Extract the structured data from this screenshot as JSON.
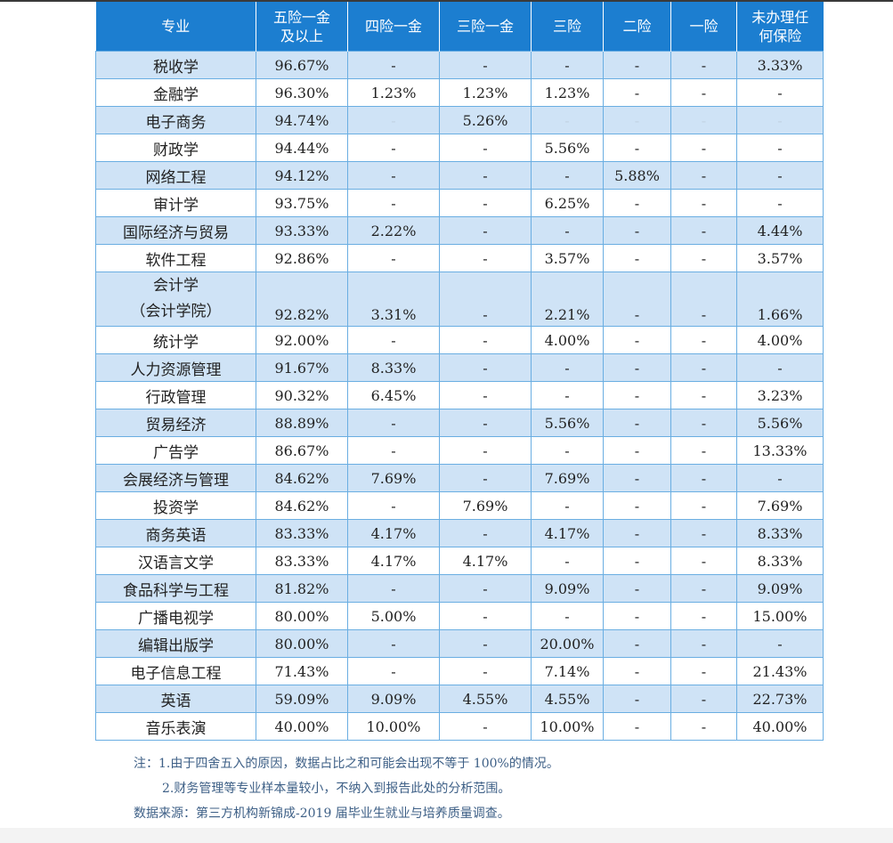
{
  "table": {
    "headers": [
      [
        "专业"
      ],
      [
        "五险一金",
        "及以上"
      ],
      [
        "四险一金"
      ],
      [
        "三险一金"
      ],
      [
        "三险"
      ],
      [
        "二险"
      ],
      [
        "一险"
      ],
      [
        "未办理任",
        "何保险"
      ]
    ],
    "rows": [
      {
        "major": [
          "税收学"
        ],
        "values": [
          "96.67%",
          "-",
          "-",
          "-",
          "-",
          "-",
          "3.33%"
        ]
      },
      {
        "major": [
          "金融学"
        ],
        "values": [
          "96.30%",
          "1.23%",
          "1.23%",
          "1.23%",
          "-",
          "-",
          "-"
        ]
      },
      {
        "major": [
          "电子商务"
        ],
        "values": [
          "94.74%",
          "-",
          "5.26%",
          "-",
          "-",
          "-",
          "-"
        ],
        "light": [
          1,
          3,
          4,
          5,
          6
        ]
      },
      {
        "major": [
          "财政学"
        ],
        "values": [
          "94.44%",
          "-",
          "-",
          "5.56%",
          "-",
          "-",
          "-"
        ]
      },
      {
        "major": [
          "网络工程"
        ],
        "values": [
          "94.12%",
          "-",
          "-",
          "-",
          "5.88%",
          "-",
          "-"
        ]
      },
      {
        "major": [
          "审计学"
        ],
        "values": [
          "93.75%",
          "-",
          "-",
          "6.25%",
          "-",
          "-",
          "-"
        ]
      },
      {
        "major": [
          "国际经济与贸易"
        ],
        "values": [
          "93.33%",
          "2.22%",
          "-",
          "-",
          "-",
          "-",
          "4.44%"
        ]
      },
      {
        "major": [
          "软件工程"
        ],
        "values": [
          "92.86%",
          "-",
          "-",
          "3.57%",
          "-",
          "-",
          "3.57%"
        ]
      },
      {
        "major": [
          "会计学",
          "（会计学院）"
        ],
        "values": [
          "92.82%",
          "3.31%",
          "-",
          "2.21%",
          "-",
          "-",
          "1.66%"
        ]
      },
      {
        "major": [
          "统计学"
        ],
        "values": [
          "92.00%",
          "-",
          "-",
          "4.00%",
          "-",
          "-",
          "4.00%"
        ]
      },
      {
        "major": [
          "人力资源管理"
        ],
        "values": [
          "91.67%",
          "8.33%",
          "-",
          "-",
          "-",
          "-",
          "-"
        ]
      },
      {
        "major": [
          "行政管理"
        ],
        "values": [
          "90.32%",
          "6.45%",
          "-",
          "-",
          "-",
          "-",
          "3.23%"
        ]
      },
      {
        "major": [
          "贸易经济"
        ],
        "values": [
          "88.89%",
          "-",
          "-",
          "5.56%",
          "-",
          "-",
          "5.56%"
        ]
      },
      {
        "major": [
          "广告学"
        ],
        "values": [
          "86.67%",
          "-",
          "-",
          "-",
          "-",
          "-",
          "13.33%"
        ]
      },
      {
        "major": [
          "会展经济与管理"
        ],
        "values": [
          "84.62%",
          "7.69%",
          "-",
          "7.69%",
          "-",
          "-",
          "-"
        ]
      },
      {
        "major": [
          "投资学"
        ],
        "values": [
          "84.62%",
          "-",
          "7.69%",
          "-",
          "-",
          "-",
          "7.69%"
        ]
      },
      {
        "major": [
          "商务英语"
        ],
        "values": [
          "83.33%",
          "4.17%",
          "-",
          "4.17%",
          "-",
          "-",
          "8.33%"
        ]
      },
      {
        "major": [
          "汉语言文学"
        ],
        "values": [
          "83.33%",
          "4.17%",
          "4.17%",
          "-",
          "-",
          "-",
          "8.33%"
        ]
      },
      {
        "major": [
          "食品科学与工程"
        ],
        "values": [
          "81.82%",
          "-",
          "-",
          "9.09%",
          "-",
          "-",
          "9.09%"
        ]
      },
      {
        "major": [
          "广播电视学"
        ],
        "values": [
          "80.00%",
          "5.00%",
          "-",
          "-",
          "-",
          "-",
          "15.00%"
        ]
      },
      {
        "major": [
          "编辑出版学"
        ],
        "values": [
          "80.00%",
          "-",
          "-",
          "20.00%",
          "-",
          "-",
          "-"
        ]
      },
      {
        "major": [
          "电子信息工程"
        ],
        "values": [
          "71.43%",
          "-",
          "-",
          "7.14%",
          "-",
          "-",
          "21.43%"
        ]
      },
      {
        "major": [
          "英语"
        ],
        "values": [
          "59.09%",
          "9.09%",
          "4.55%",
          "4.55%",
          "-",
          "-",
          "22.73%"
        ]
      },
      {
        "major": [
          "音乐表演"
        ],
        "values": [
          "40.00%",
          "10.00%",
          "-",
          "10.00%",
          "-",
          "-",
          "40.00%"
        ]
      }
    ]
  },
  "notes": {
    "note1": "注：1.由于四舍五入的原因，数据占比之和可能会出现不等于 100%的情况。",
    "note2": "2.财务管理等专业样本量较小，不纳入到报告此处的分析范围。",
    "source": "数据来源：第三方机构新锦成-2019 届毕业生就业与培养质量调查。"
  },
  "colors": {
    "header_bg": "#1c7ed0",
    "row_shade": "#cfe3f6",
    "border": "#6aaee2",
    "note_text": "#3d5f86"
  }
}
